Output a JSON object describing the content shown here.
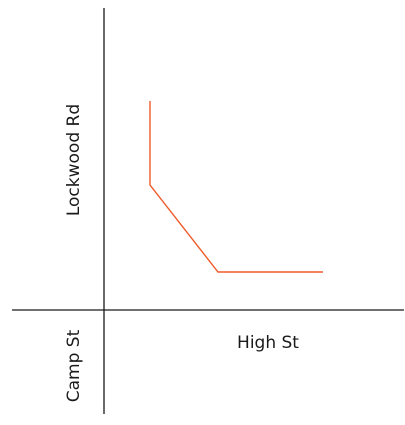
{
  "map": {
    "roads": {
      "vertical_road_name_upper": "Lockwood Rd",
      "vertical_road_name_lower": "Camp St",
      "horizontal_road_name": "High St"
    },
    "route": {
      "color": "#f05a28"
    },
    "road_color": "#1a1a1a"
  }
}
